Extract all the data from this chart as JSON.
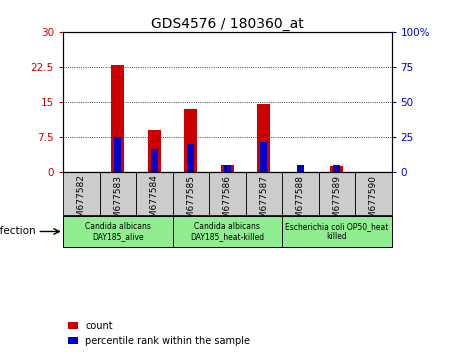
{
  "title": "GDS4576 / 180360_at",
  "samples": [
    "GSM677582",
    "GSM677583",
    "GSM677584",
    "GSM677585",
    "GSM677586",
    "GSM677587",
    "GSM677588",
    "GSM677589",
    "GSM677590"
  ],
  "count_values": [
    0,
    23.0,
    9.0,
    13.5,
    1.5,
    14.7,
    0,
    1.3,
    0
  ],
  "percentile_values": [
    0,
    25,
    17,
    20,
    5,
    22,
    5,
    5,
    0
  ],
  "ylim_left": [
    0,
    30
  ],
  "ylim_right": [
    0,
    100
  ],
  "yticks_left": [
    0,
    7.5,
    15,
    22.5,
    30
  ],
  "ytick_labels_left": [
    "0",
    "7.5",
    "15",
    "22.5",
    "30"
  ],
  "yticks_right": [
    0,
    25,
    50,
    75,
    100
  ],
  "ytick_labels_right": [
    "0",
    "25",
    "50",
    "75",
    "100%"
  ],
  "groups": [
    {
      "label": "Candida albicans\nDAY185_alive",
      "start": 0,
      "end": 3,
      "color": "#90EE90"
    },
    {
      "label": "Candida albicans\nDAY185_heat-killed",
      "start": 3,
      "end": 6,
      "color": "#90EE90"
    },
    {
      "label": "Escherichia coli OP50_heat\nkilled",
      "start": 6,
      "end": 9,
      "color": "#90EE90"
    }
  ],
  "infection_label": "infection",
  "bar_color_red": "#CC0000",
  "bar_color_blue": "#0000CC",
  "bar_width": 0.35,
  "percentile_bar_width": 0.2,
  "background_color": "#ffffff",
  "plot_bg_color": "#ffffff",
  "tick_label_color_left": "#CC0000",
  "tick_label_color_right": "#0000CC",
  "grid_color": "black",
  "xtick_area_color": "#cccccc",
  "legend_labels": [
    "count",
    "percentile rank within the sample"
  ]
}
